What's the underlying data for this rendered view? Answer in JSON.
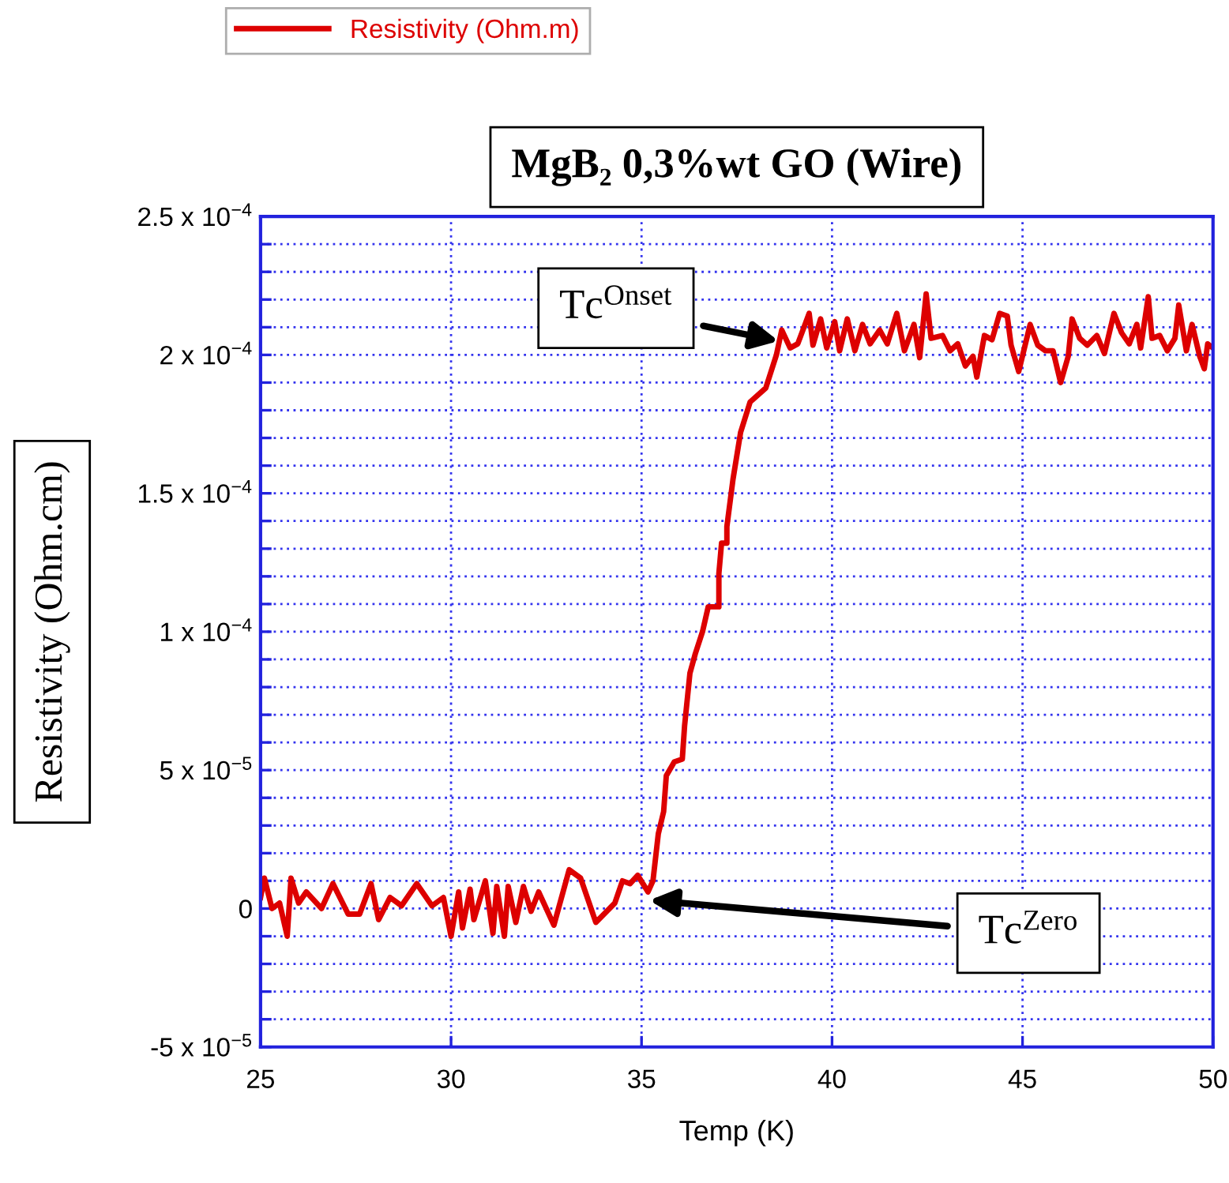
{
  "chart_data": {
    "type": "line",
    "title": "MgB₂ 0,3%wt GO (Wire)",
    "xlabel": "Temp (K)",
    "ylabel": "Resistivity (Ohm.cm)",
    "series": [
      {
        "name": "Resistivity (Ohm.m)",
        "color": "#dd0000",
        "x": [
          25.0,
          25.1,
          25.3,
          25.5,
          25.7,
          25.8,
          26.0,
          26.2,
          26.6,
          26.9,
          27.3,
          27.6,
          27.9,
          28.1,
          28.4,
          28.7,
          29.1,
          29.5,
          29.8,
          30.0,
          30.2,
          30.3,
          30.5,
          30.6,
          30.9,
          31.1,
          31.2,
          31.4,
          31.5,
          31.7,
          31.9,
          32.1,
          32.3,
          32.7,
          33.1,
          33.4,
          33.8,
          34.3,
          34.5,
          34.7,
          34.9,
          35.17,
          35.3,
          35.44,
          35.58,
          35.65,
          35.86,
          36.07,
          36.13,
          36.27,
          36.41,
          36.6,
          36.75,
          37.03,
          37.03,
          37.1,
          37.24,
          37.24,
          37.4,
          37.6,
          37.85,
          38.26,
          38.54,
          38.68,
          38.9,
          39.1,
          39.4,
          39.5,
          39.7,
          39.86,
          40.07,
          40.2,
          40.4,
          40.6,
          40.8,
          41.0,
          41.25,
          41.45,
          41.7,
          41.9,
          42.15,
          42.3,
          42.47,
          42.6,
          42.9,
          43.1,
          43.3,
          43.5,
          43.7,
          43.8,
          44.0,
          44.2,
          44.4,
          44.6,
          44.7,
          44.9,
          45.2,
          45.4,
          45.6,
          45.8,
          46.0,
          46.2,
          46.3,
          46.5,
          46.7,
          46.95,
          47.15,
          47.4,
          47.6,
          47.8,
          48.0,
          48.1,
          48.3,
          48.4,
          48.6,
          48.8,
          49.0,
          49.1,
          49.3,
          49.45,
          49.65,
          49.77,
          49.86,
          50.0
        ],
        "values": [
          4e-06,
          1.1e-05,
          0.0,
          2e-06,
          -1e-05,
          1.1e-05,
          2e-06,
          6e-06,
          0.0,
          9e-06,
          -2e-06,
          -2e-06,
          9e-06,
          -4e-06,
          4e-06,
          1e-06,
          9e-06,
          1e-06,
          4e-06,
          -1e-05,
          6e-06,
          -7e-06,
          7e-06,
          -4e-06,
          1e-05,
          -9e-06,
          8e-06,
          -1e-05,
          8e-06,
          -5e-06,
          8e-06,
          -1e-06,
          6e-06,
          -6e-06,
          1.4e-05,
          1.1e-05,
          -5e-06,
          2e-06,
          1e-05,
          9e-06,
          1.2e-05,
          6e-06,
          1e-05,
          2.7e-05,
          3.5e-05,
          4.8e-05,
          5.3e-05,
          5.4e-05,
          6.6e-05,
          8.5e-05,
          9.2e-05,
          0.0001,
          0.000109,
          0.000109,
          0.000121,
          0.000132,
          0.000132,
          0.000138,
          0.000155,
          0.000172,
          0.000183,
          0.000188,
          0.0002,
          0.000209,
          0.0002025,
          0.000204,
          0.000215,
          0.0002035,
          0.000213,
          0.0002025,
          0.000212,
          0.0002015,
          0.000213,
          0.0002015,
          0.000211,
          0.000204,
          0.000209,
          0.000204,
          0.000215,
          0.0002015,
          0.000211,
          0.000199,
          0.000222,
          0.000206,
          0.000207,
          0.0002015,
          0.000204,
          0.000196,
          0.0001995,
          0.000192,
          0.000207,
          0.0002055,
          0.000215,
          0.000214,
          0.0002035,
          0.000194,
          0.000211,
          0.0002035,
          0.0002015,
          0.0002015,
          0.00019,
          0.0001995,
          0.000213,
          0.000206,
          0.0002035,
          0.000207,
          0.0002005,
          0.000215,
          0.000208,
          0.000204,
          0.000211,
          0.0002025,
          0.000221,
          0.000206,
          0.000207,
          0.0002015,
          0.000206,
          0.000218,
          0.0002015,
          0.000211,
          0.0001995,
          0.000195,
          0.000204,
          0.0002025
        ]
      }
    ],
    "xlim": [
      25,
      50
    ],
    "xticks": [
      25,
      30,
      35,
      40,
      45,
      50
    ],
    "ylim": [
      -5e-05,
      0.00025
    ],
    "yticks": [
      {
        "value": -5e-05,
        "label": "-5 x 10$^{−5}$"
      },
      {
        "value": -4e-05,
        "label": null
      },
      {
        "value": -3e-05,
        "label": null
      },
      {
        "value": -2e-05,
        "label": null
      },
      {
        "value": -1e-05,
        "label": null
      },
      {
        "value": 0,
        "label": "0"
      },
      {
        "value": 1e-05,
        "label": null
      },
      {
        "value": 2e-05,
        "label": null
      },
      {
        "value": 3e-05,
        "label": null
      },
      {
        "value": 4e-05,
        "label": null
      },
      {
        "value": 5e-05,
        "label": "5 x 10$^{−5}$"
      },
      {
        "value": 6e-05,
        "label": null
      },
      {
        "value": 7e-05,
        "label": null
      },
      {
        "value": 8e-05,
        "label": null
      },
      {
        "value": 9e-05,
        "label": null
      },
      {
        "value": 0.0001,
        "label": "1 x 10$^{−4}$"
      },
      {
        "value": 0.00011,
        "label": null
      },
      {
        "value": 0.00012,
        "label": null
      },
      {
        "value": 0.00013,
        "label": null
      },
      {
        "value": 0.00014,
        "label": null
      },
      {
        "value": 0.00015,
        "label": "1.5 x 10$^{−4}$"
      },
      {
        "value": 0.00016,
        "label": null
      },
      {
        "value": 0.00017,
        "label": null
      },
      {
        "value": 0.00018,
        "label": null
      },
      {
        "value": 0.00019,
        "label": null
      },
      {
        "value": 0.0002,
        "label": "2 x 10$^{−4}$"
      },
      {
        "value": 0.00021,
        "label": null
      },
      {
        "value": 0.00022,
        "label": null
      },
      {
        "value": 0.00023,
        "label": null
      },
      {
        "value": 0.00024,
        "label": null
      },
      {
        "value": 0.00025,
        "label": "2.5 x 10$^{−4}$"
      }
    ],
    "grid": true,
    "legend": "top left",
    "marker": "none",
    "line_style": "solid",
    "annotations": [
      {
        "text": "Tc$^{Onset}$",
        "x": 38.6,
        "y": 0.000205
      },
      {
        "text": "Tc$^{Zero}$",
        "x": 35.2,
        "y": 3e-06
      }
    ]
  }
}
